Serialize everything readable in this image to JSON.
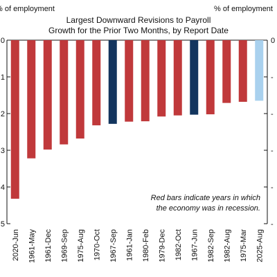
{
  "chart_data": {
    "type": "bar",
    "title_lines": [
      "Largest Downward Revisions to Payroll",
      "Growth for the Prior Two Months, by Report Date"
    ],
    "unit_left": "% of employment",
    "unit_right": "% of employment",
    "ylim": [
      -0.05,
      0.0
    ],
    "yticks_left": [
      "0",
      "1",
      "2",
      "3",
      "4",
      "5"
    ],
    "yticks_right": [
      "0",
      "-",
      "-",
      "-",
      "-",
      "-"
    ],
    "categories": [
      "2020-Jun",
      "1961-May",
      "1961-Dec",
      "1969-Sep",
      "1975-Aug",
      "1970-Oct",
      "1967-Sep",
      "1961-Jan",
      "1980-Feb",
      "1979-Dec",
      "1982-Oct",
      "1967-Jun",
      "1982-Sep",
      "1982-Aug",
      "1975-Mar",
      "2025-Aug"
    ],
    "values": [
      -0.0432,
      -0.0322,
      -0.0298,
      -0.0284,
      -0.0268,
      -0.0232,
      -0.0228,
      -0.0222,
      -0.0221,
      -0.0208,
      -0.0205,
      -0.0203,
      -0.0202,
      -0.0171,
      -0.0168,
      -0.0165
    ],
    "bar_colors": [
      "#c0393b",
      "#c0393b",
      "#c0393b",
      "#c0393b",
      "#c0393b",
      "#c0393b",
      "#13355e",
      "#c0393b",
      "#c0393b",
      "#c0393b",
      "#c0393b",
      "#13355e",
      "#c0393b",
      "#c0393b",
      "#c0393b",
      "#a9d1ee"
    ],
    "annotation_lines": [
      "Red bars indicate years in which",
      "the economy was in recession."
    ],
    "grid": false
  }
}
